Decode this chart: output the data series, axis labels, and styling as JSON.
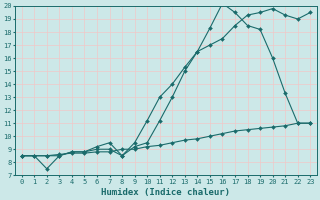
{
  "xlabel": "Humidex (Indice chaleur)",
  "xlim": [
    -0.5,
    23.5
  ],
  "ylim": [
    7,
    20
  ],
  "xticks": [
    0,
    1,
    2,
    3,
    4,
    5,
    6,
    7,
    8,
    9,
    10,
    11,
    12,
    13,
    14,
    15,
    16,
    17,
    18,
    19,
    20,
    21,
    22,
    23
  ],
  "yticks": [
    7,
    8,
    9,
    10,
    11,
    12,
    13,
    14,
    15,
    16,
    17,
    18,
    19,
    20
  ],
  "bg_color": "#cce8e8",
  "line_color": "#1a6b6b",
  "grid_color": "#f0c8c8",
  "line1_x": [
    0,
    1,
    2,
    3,
    4,
    5,
    6,
    7,
    8,
    9,
    10,
    11,
    12,
    13,
    14,
    15,
    16,
    17,
    18,
    19,
    20,
    21,
    22,
    23
  ],
  "line1_y": [
    8.5,
    8.5,
    8.5,
    8.6,
    8.7,
    8.7,
    8.8,
    8.8,
    9.0,
    9.0,
    9.2,
    9.3,
    9.5,
    9.7,
    9.8,
    10.0,
    10.2,
    10.4,
    10.5,
    10.6,
    10.7,
    10.8,
    11.0,
    11.0
  ],
  "line2_x": [
    0,
    1,
    2,
    3,
    4,
    5,
    6,
    7,
    8,
    9,
    10,
    11,
    12,
    13,
    14,
    15,
    16,
    17,
    18,
    19,
    20,
    21,
    22,
    23
  ],
  "line2_y": [
    8.5,
    8.5,
    7.5,
    8.5,
    8.8,
    8.8,
    9.2,
    9.5,
    8.5,
    9.5,
    11.2,
    13.0,
    14.0,
    15.3,
    16.5,
    17.0,
    17.5,
    18.5,
    19.3,
    19.5,
    19.8,
    19.3,
    19.0,
    19.5
  ],
  "line3_x": [
    0,
    2,
    3,
    4,
    5,
    6,
    7,
    8,
    9,
    10,
    11,
    12,
    13,
    14,
    15,
    16,
    17,
    18,
    19,
    20,
    21,
    22,
    23
  ],
  "line3_y": [
    8.5,
    8.5,
    8.5,
    8.8,
    8.8,
    9.0,
    9.0,
    8.5,
    9.2,
    9.5,
    11.2,
    13.0,
    15.0,
    16.5,
    18.3,
    20.2,
    19.5,
    18.5,
    18.2,
    16.0,
    13.3,
    11.0,
    11.0
  ]
}
